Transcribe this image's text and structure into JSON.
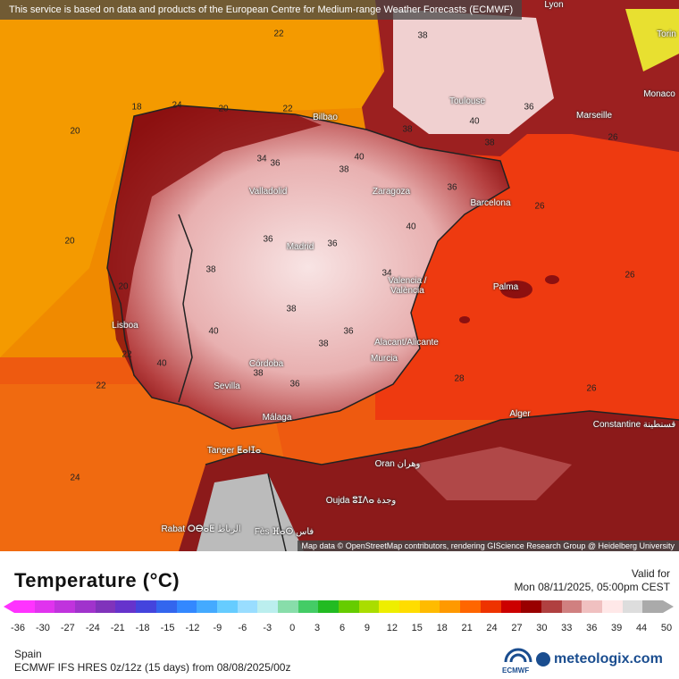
{
  "banner": "This service is based on data and products of the European Centre for Medium-range Weather Forecasts (ECMWF)",
  "attribution": "Map data © OpenStreetMap contributors, rendering GIScience Research Group @ Heidelberg University",
  "cities": [
    {
      "name": "Bilbao"
    },
    {
      "name": "Toulouse"
    },
    {
      "name": "Marseille"
    },
    {
      "name": "Monaco"
    },
    {
      "name": "Torin"
    },
    {
      "name": "Valladolid"
    },
    {
      "name": "Zaragoza"
    },
    {
      "name": "Barcelona"
    },
    {
      "name": "Madrid"
    },
    {
      "name": "Valencia / València"
    },
    {
      "name": "Palma"
    },
    {
      "name": "Lisboa"
    },
    {
      "name": "Alacant/Alicante"
    },
    {
      "name": "Murcia"
    },
    {
      "name": "Córdoba"
    },
    {
      "name": "Sevilla"
    },
    {
      "name": "Málaga"
    },
    {
      "name": "Alger"
    },
    {
      "name": "Constantine قسنطينة"
    },
    {
      "name": "Tanger ⵟⴰⵏⵊⴰ"
    },
    {
      "name": "Oran وهران"
    },
    {
      "name": "Oujda ⵓⵊⴷⴰ وجدة"
    },
    {
      "name": "Rabat ⵔⴱⴰⵟ الرباط"
    },
    {
      "name": "Fès ⴼⴰⵙ فاس"
    },
    {
      "name": "Lyon"
    }
  ],
  "temperature_labels": [
    "22",
    "18",
    "20",
    "24",
    "22",
    "20",
    "38",
    "40",
    "38",
    "38",
    "36",
    "34",
    "36",
    "40",
    "38",
    "36",
    "40",
    "36",
    "36",
    "38",
    "38",
    "40",
    "38",
    "40",
    "36",
    "38",
    "36",
    "26",
    "26",
    "26",
    "28",
    "26",
    "22",
    "22",
    "20",
    "20",
    "24",
    "34"
  ],
  "legend": {
    "title": "Temperature (°C)",
    "valid_label": "Valid for",
    "valid_time": "Mon 08/11/2025, 05:00pm CEST",
    "ticks": [
      "-36",
      "-30",
      "-27",
      "-24",
      "-21",
      "-18",
      "-15",
      "-12",
      "-9",
      "-6",
      "-3",
      "0",
      "3",
      "6",
      "9",
      "12",
      "15",
      "18",
      "21",
      "24",
      "27",
      "30",
      "33",
      "36",
      "39",
      "44",
      "50"
    ],
    "colors": [
      "#ff33ff",
      "#e033ee",
      "#c033dd",
      "#a033cc",
      "#8033bb",
      "#6633cc",
      "#4444dd",
      "#3366ee",
      "#3388ff",
      "#44aaff",
      "#66ccff",
      "#99ddff",
      "#bbeeee",
      "#88ddaa",
      "#44cc66",
      "#22bb22",
      "#66cc00",
      "#aadd00",
      "#eeee00",
      "#ffdd00",
      "#ffbb00",
      "#ff9900",
      "#ff6600",
      "#ee3300",
      "#cc0000",
      "#990000",
      "#b04040",
      "#d08080",
      "#f0c0c0",
      "#ffe8e8",
      "#dddddd",
      "#aaaaaa"
    ],
    "region": "Spain",
    "model": "ECMWF IFS HRES 0z/12z (15 days) from 08/08/2025/00z",
    "ecmwf": "ECMWF",
    "brand": "meteologix.com",
    "brand_color": "#1a4d8f"
  }
}
